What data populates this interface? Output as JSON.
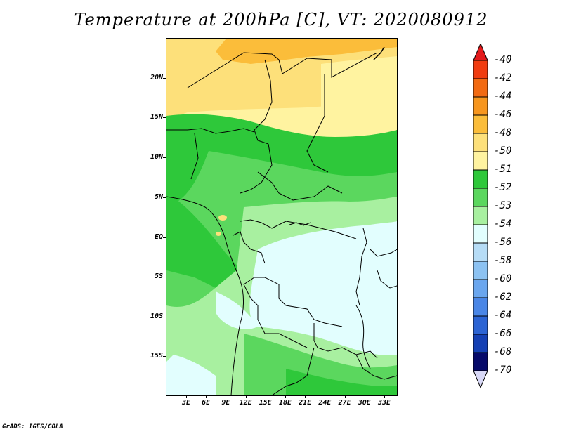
{
  "title": "Temperature at 200hPa [C], VT: 2020080912",
  "credit": "GrADS: IGES/COLA",
  "lat_labels": [
    "20N",
    "15N",
    "10N",
    "5N",
    "EQ",
    "5S",
    "10S",
    "15S"
  ],
  "lon_labels": [
    "3E",
    "6E",
    "9E",
    "12E",
    "15E",
    "18E",
    "21E",
    "24E",
    "27E",
    "30E",
    "33E"
  ],
  "colorbar": {
    "labels": [
      "-40",
      "-42",
      "-44",
      "-46",
      "-48",
      "-50",
      "-51",
      "-52",
      "-53",
      "-54",
      "-56",
      "-58",
      "-60",
      "-62",
      "-64",
      "-66",
      "-68",
      "-70"
    ],
    "colors": [
      "#e31a1c",
      "#f03c10",
      "#f26a12",
      "#f7961e",
      "#fbbd3a",
      "#fde07a",
      "#fff3a0",
      "#2ec83a",
      "#5bd75e",
      "#a8f0a0",
      "#e2fefe",
      "#b6dcf6",
      "#8cc2f2",
      "#6aa6ee",
      "#4a86e6",
      "#2c64d4",
      "#1440b4",
      "#060a6a",
      "#d8d8f6"
    ]
  },
  "map": {
    "bands": [
      {
        "name": "orange-top",
        "color": "#fbbd3a"
      },
      {
        "name": "yellow-north",
        "color": "#fde07a"
      },
      {
        "name": "pale-yellow",
        "color": "#fff3a0"
      },
      {
        "name": "dark-green",
        "color": "#2ec83a"
      },
      {
        "name": "mid-green",
        "color": "#5bd75e"
      },
      {
        "name": "light-green",
        "color": "#a8f0a0"
      },
      {
        "name": "pale-cyan",
        "color": "#e2fefe"
      }
    ]
  }
}
